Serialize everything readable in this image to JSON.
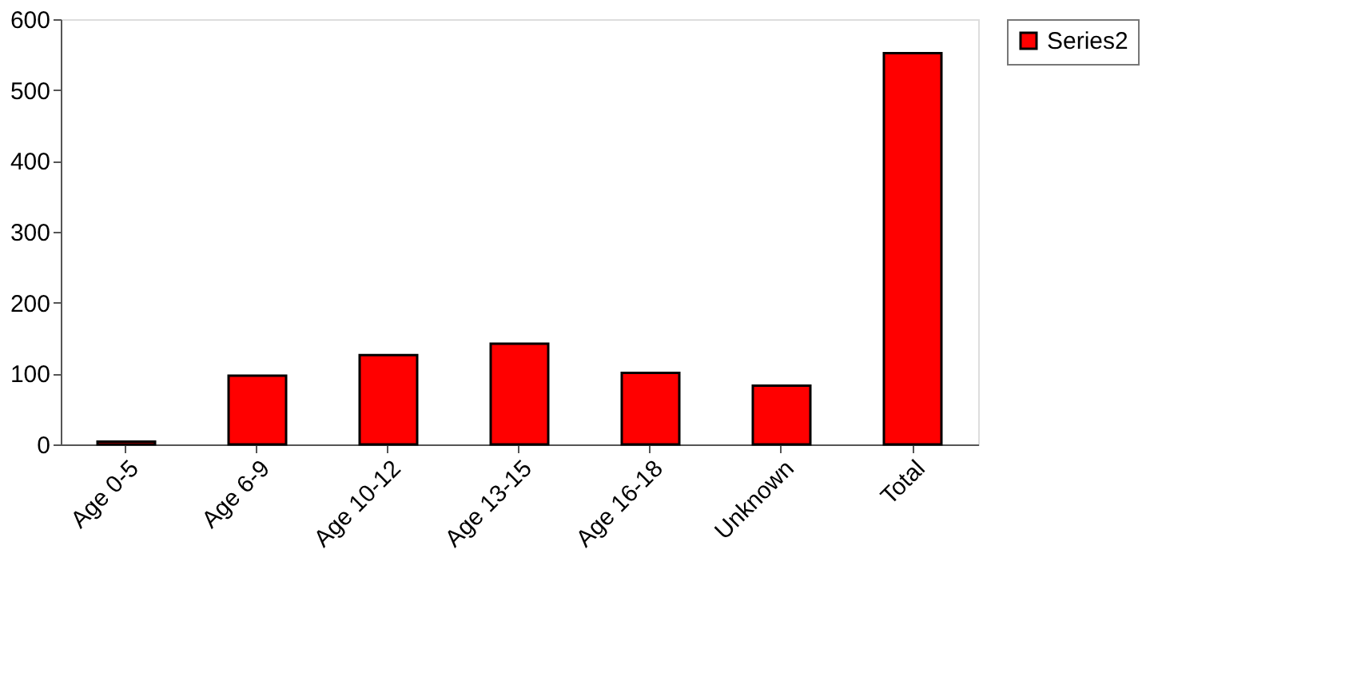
{
  "chart_data": {
    "type": "bar",
    "categories": [
      "Age 0-5",
      "Age 6-9",
      "Age 10-12",
      "Age 13-15",
      "Age 16-18",
      "Unknown",
      "Total"
    ],
    "series": [
      {
        "name": "Series2",
        "color": "#ff0000",
        "values": [
          4,
          97,
          126,
          142,
          101,
          83,
          552
        ]
      }
    ],
    "ylim": [
      0,
      600
    ],
    "yticks": [
      0,
      100,
      200,
      300,
      400,
      500,
      600
    ],
    "grid": false,
    "legend": "right"
  }
}
